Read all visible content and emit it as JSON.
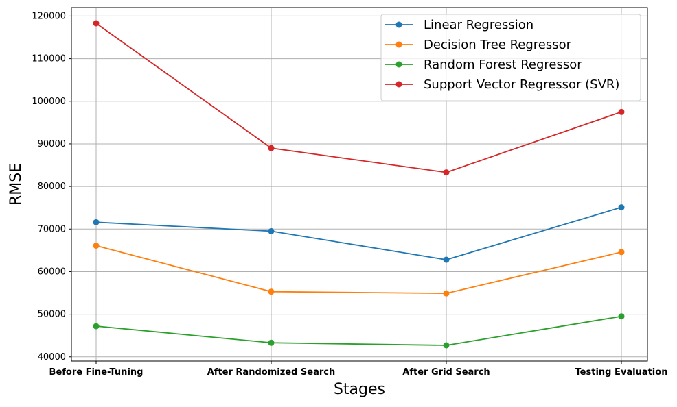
{
  "chart_data": {
    "type": "line",
    "title": "",
    "xlabel": "Stages",
    "ylabel": "RMSE",
    "categories": [
      "Before Fine-Tuning",
      "After Randomized Search",
      "After Grid Search",
      "Testing Evaluation"
    ],
    "ylim": [
      39000,
      122000
    ],
    "yticks": [
      40000,
      50000,
      60000,
      70000,
      80000,
      90000,
      100000,
      110000,
      120000
    ],
    "grid": true,
    "legend_position": "top-right",
    "series": [
      {
        "name": "Linear Regression",
        "color": "#1f77b4",
        "values": [
          71600,
          69500,
          62800,
          75100
        ]
      },
      {
        "name": "Decision Tree Regressor",
        "color": "#ff7f0e",
        "values": [
          66100,
          55300,
          54900,
          64600
        ]
      },
      {
        "name": "Random Forest Regressor",
        "color": "#2ca02c",
        "values": [
          47200,
          43300,
          42700,
          49500
        ]
      },
      {
        "name": "Support Vector Regressor (SVR)",
        "color": "#d62728",
        "values": [
          118300,
          89000,
          83300,
          97500
        ]
      }
    ]
  }
}
